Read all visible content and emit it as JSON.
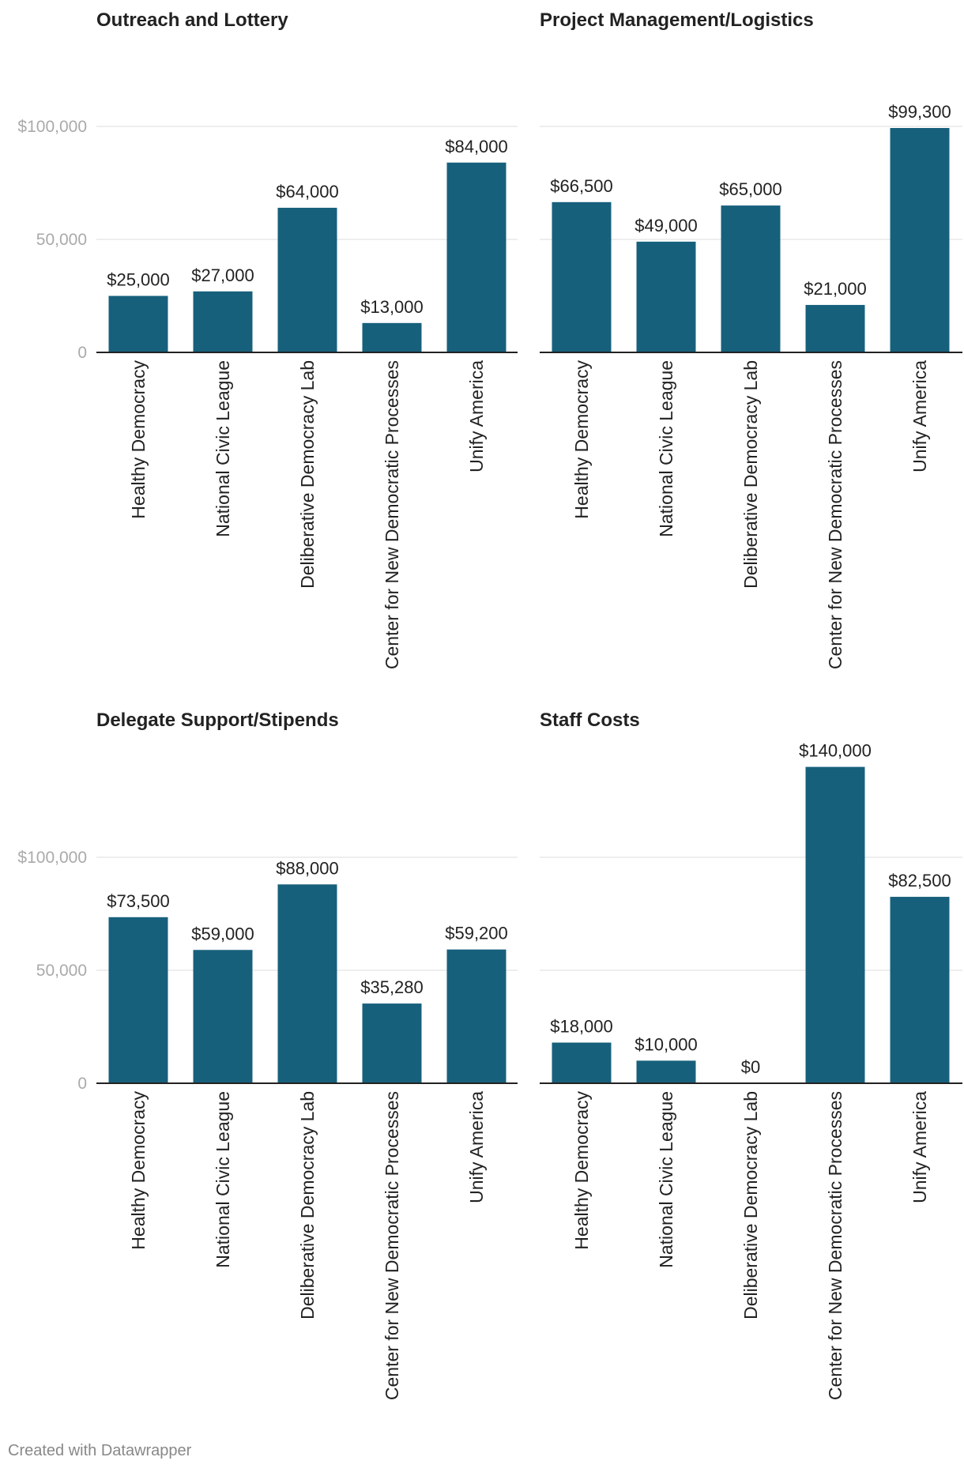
{
  "footer": "Created with Datawrapper",
  "colors": {
    "bar": "#17607c",
    "grid": "#dddddd",
    "axis": "#222222",
    "tick_label": "#aaaaaa",
    "text": "#222222"
  },
  "chart_data": [
    {
      "type": "bar",
      "title": "Outreach and Lottery",
      "categories": [
        "Healthy Democracy",
        "National Civic League",
        "Deliberative Democracy Lab",
        "Center for New Democratic Processes",
        "Unify America"
      ],
      "values": [
        25000,
        27000,
        64000,
        13000,
        84000
      ],
      "value_labels": [
        "$25,000",
        "$27,000",
        "$64,000",
        "$13,000",
        "$84,000"
      ],
      "ylim": [
        0,
        100000
      ],
      "yticks": [
        0,
        50000,
        100000
      ],
      "ytick_labels": [
        "0",
        "50,000",
        "$100,000"
      ],
      "show_ytick_labels": true,
      "xlabel": "",
      "ylabel": ""
    },
    {
      "type": "bar",
      "title": "Project Management/Logistics",
      "categories": [
        "Healthy Democracy",
        "National Civic League",
        "Deliberative Democracy Lab",
        "Center for New Democratic Processes",
        "Unify America"
      ],
      "values": [
        66500,
        49000,
        65000,
        21000,
        99300
      ],
      "value_labels": [
        "$66,500",
        "$49,000",
        "$65,000",
        "$21,000",
        "$99,300"
      ],
      "ylim": [
        0,
        100000
      ],
      "yticks": [
        0,
        50000,
        100000
      ],
      "show_ytick_labels": false,
      "xlabel": "",
      "ylabel": ""
    },
    {
      "type": "bar",
      "title": "Delegate Support/Stipends",
      "categories": [
        "Healthy Democracy",
        "National Civic League",
        "Deliberative Democracy Lab",
        "Center for New Democratic Processes",
        "Unify America"
      ],
      "values": [
        73500,
        59000,
        88000,
        35280,
        59200
      ],
      "value_labels": [
        "$73,500",
        "$59,000",
        "$88,000",
        "$35,280",
        "$59,200"
      ],
      "ylim": [
        0,
        100000
      ],
      "yticks": [
        0,
        50000,
        100000
      ],
      "ytick_labels": [
        "0",
        "50,000",
        "$100,000"
      ],
      "show_ytick_labels": true,
      "xlabel": "",
      "ylabel": ""
    },
    {
      "type": "bar",
      "title": "Staff Costs",
      "categories": [
        "Healthy Democracy",
        "National Civic League",
        "Deliberative Democracy Lab",
        "Center for New Democratic Processes",
        "Unify America"
      ],
      "values": [
        18000,
        10000,
        0,
        140000,
        82500
      ],
      "value_labels": [
        "$18,000",
        "$10,000",
        "$0",
        "$140,000",
        "$82,500"
      ],
      "ylim": [
        0,
        100000
      ],
      "yticks": [
        0,
        50000,
        100000
      ],
      "show_ytick_labels": false,
      "xlabel": "",
      "ylabel": ""
    }
  ]
}
